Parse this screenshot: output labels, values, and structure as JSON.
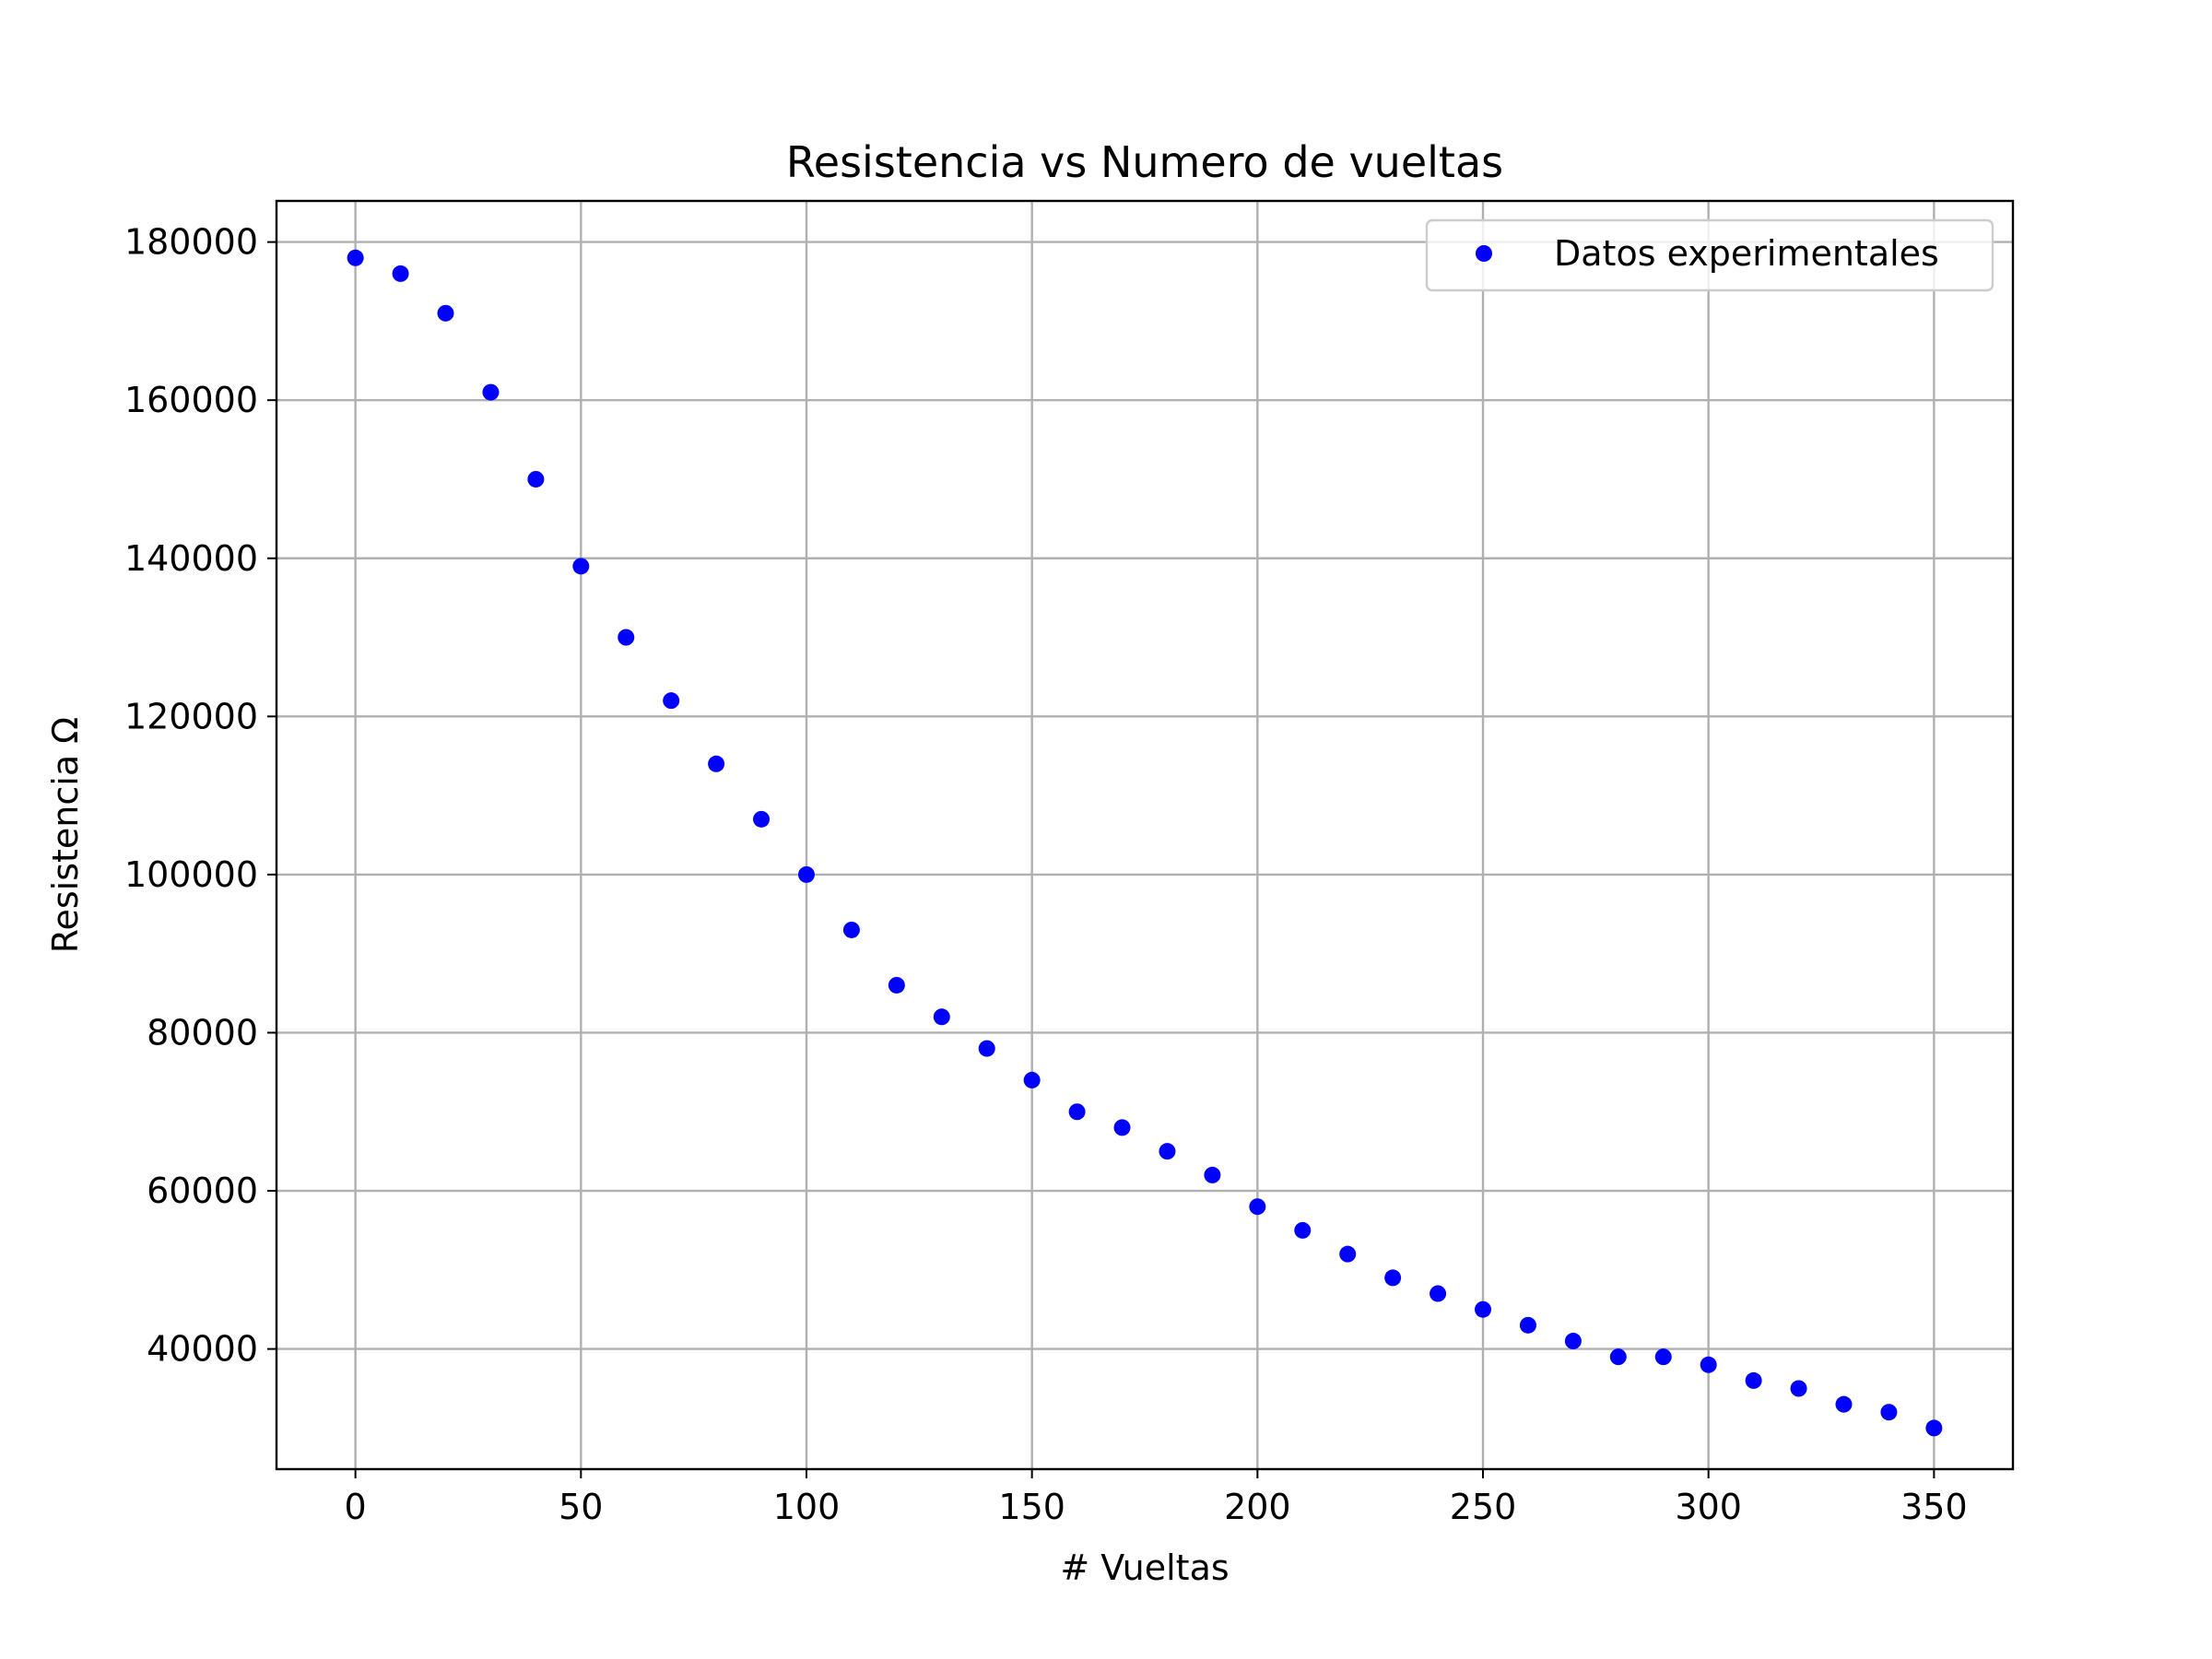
{
  "chart_data": {
    "type": "scatter",
    "title": "Resistencia vs Numero de vueltas",
    "xlabel": "# Vueltas",
    "ylabel": "Resistencia  Ω",
    "xlim": [
      -17.5,
      367.5
    ],
    "ylim": [
      24800,
      185200
    ],
    "x_ticks": [
      "0",
      "50",
      "100",
      "150",
      "200",
      "250",
      "300",
      "350"
    ],
    "y_ticks": [
      "40000",
      "60000",
      "80000",
      "100000",
      "120000",
      "140000",
      "160000",
      "180000"
    ],
    "grid": true,
    "legend_position": "top-right",
    "series": [
      {
        "name": "Datos experimentales",
        "color": "#0000ff",
        "marker": "circle",
        "x": [
          0,
          10,
          20,
          30,
          40,
          50,
          60,
          70,
          80,
          90,
          100,
          110,
          120,
          130,
          140,
          150,
          160,
          170,
          180,
          190,
          200,
          210,
          220,
          230,
          240,
          250,
          260,
          270,
          280,
          290,
          300,
          310,
          320,
          330,
          340,
          350
        ],
        "y": [
          178000,
          176000,
          171000,
          161000,
          150000,
          139000,
          130000,
          122000,
          114000,
          107000,
          100000,
          93000,
          86000,
          82000,
          78000,
          74000,
          70000,
          68000,
          65000,
          62000,
          58000,
          55000,
          52000,
          49000,
          47000,
          45000,
          43000,
          41000,
          39000,
          39000,
          38000,
          36000,
          35000,
          33000,
          32000,
          30000
        ]
      }
    ]
  }
}
